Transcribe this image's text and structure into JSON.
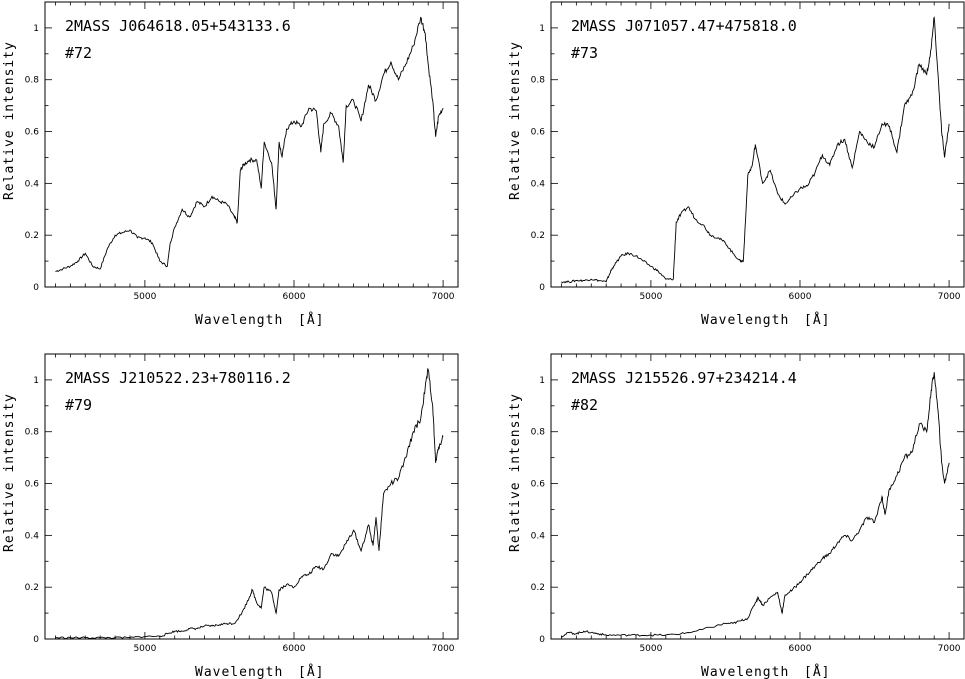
{
  "figure": {
    "panels": [
      {
        "id": "72",
        "title": "2MASS  J064618.05+543133.6",
        "label": "#72"
      },
      {
        "id": "73",
        "title": "2MASS  J071057.47+475818.0",
        "label": "#73"
      },
      {
        "id": "79",
        "title": "2MASS  J210522.23+780116.2",
        "label": "#79"
      },
      {
        "id": "82",
        "title": "2MASS  J215526.97+234214.4",
        "label": "#82"
      }
    ]
  },
  "chart_data": [
    {
      "type": "line",
      "title": "2MASS  J064618.05+543133.6",
      "annotation": "#72",
      "xlabel": "Wavelength",
      "xunit": "[Å]",
      "ylabel": "Relative intensity",
      "xlim": [
        4330,
        7100
      ],
      "ylim": [
        0,
        1.1
      ],
      "xticks": [
        5000,
        6000,
        7000
      ],
      "yticks": [
        0,
        0.2,
        0.4,
        0.6,
        0.8,
        1
      ],
      "ytick_labels": [
        "0",
        "0.2",
        "0.4",
        "0.6",
        "0.8",
        "1"
      ],
      "grid": false,
      "series": [
        {
          "x": [
            4400,
            4450,
            4500,
            4550,
            4600,
            4650,
            4700,
            4750,
            4800,
            4850,
            4900,
            4950,
            5000,
            5050,
            5100,
            5150,
            5170,
            5200,
            5250,
            5300,
            5350,
            5400,
            5450,
            5500,
            5550,
            5600,
            5620,
            5640,
            5660,
            5700,
            5750,
            5780,
            5800,
            5850,
            5880,
            5900,
            5920,
            5950,
            6000,
            6050,
            6100,
            6150,
            6180,
            6200,
            6250,
            6300,
            6330,
            6350,
            6400,
            6450,
            6500,
            6550,
            6600,
            6650,
            6700,
            6750,
            6800,
            6850,
            6880,
            6900,
            6930,
            6950,
            6970,
            7000
          ],
          "y": [
            0.06,
            0.07,
            0.08,
            0.1,
            0.13,
            0.08,
            0.07,
            0.15,
            0.2,
            0.21,
            0.22,
            0.19,
            0.19,
            0.17,
            0.1,
            0.08,
            0.17,
            0.23,
            0.3,
            0.27,
            0.33,
            0.31,
            0.35,
            0.33,
            0.32,
            0.27,
            0.25,
            0.45,
            0.47,
            0.49,
            0.49,
            0.38,
            0.56,
            0.48,
            0.3,
            0.56,
            0.5,
            0.61,
            0.64,
            0.62,
            0.69,
            0.68,
            0.52,
            0.63,
            0.67,
            0.62,
            0.48,
            0.7,
            0.72,
            0.64,
            0.78,
            0.72,
            0.82,
            0.87,
            0.8,
            0.86,
            0.93,
            1.04,
            0.98,
            0.86,
            0.72,
            0.58,
            0.66,
            0.69
          ]
        }
      ]
    },
    {
      "type": "line",
      "title": "2MASS  J071057.47+475818.0",
      "annotation": "#73",
      "xlabel": "Wavelength",
      "xunit": "[Å]",
      "ylabel": "Relative intensity",
      "xlim": [
        4330,
        7100
      ],
      "ylim": [
        0,
        1.1
      ],
      "xticks": [
        5000,
        6000,
        7000
      ],
      "yticks": [
        0,
        0.2,
        0.4,
        0.6,
        0.8,
        1
      ],
      "ytick_labels": [
        "0",
        "0.2",
        "0.4",
        "0.6",
        "0.8",
        "1"
      ],
      "grid": false,
      "series": [
        {
          "x": [
            4400,
            4450,
            4500,
            4550,
            4600,
            4650,
            4700,
            4730,
            4750,
            4800,
            4850,
            4900,
            4950,
            5000,
            5050,
            5100,
            5150,
            5170,
            5200,
            5250,
            5300,
            5350,
            5400,
            5450,
            5500,
            5550,
            5600,
            5620,
            5650,
            5680,
            5700,
            5750,
            5800,
            5850,
            5900,
            5950,
            6000,
            6050,
            6100,
            6150,
            6200,
            6250,
            6300,
            6350,
            6400,
            6450,
            6500,
            6550,
            6600,
            6650,
            6700,
            6750,
            6800,
            6850,
            6880,
            6900,
            6930,
            6950,
            6970,
            7000
          ],
          "y": [
            0.02,
            0.02,
            0.025,
            0.025,
            0.03,
            0.025,
            0.02,
            0.06,
            0.08,
            0.12,
            0.13,
            0.12,
            0.1,
            0.08,
            0.06,
            0.03,
            0.03,
            0.25,
            0.28,
            0.31,
            0.26,
            0.24,
            0.2,
            0.19,
            0.17,
            0.13,
            0.1,
            0.1,
            0.43,
            0.47,
            0.55,
            0.4,
            0.45,
            0.36,
            0.32,
            0.35,
            0.38,
            0.39,
            0.44,
            0.51,
            0.47,
            0.55,
            0.57,
            0.46,
            0.6,
            0.56,
            0.54,
            0.63,
            0.62,
            0.52,
            0.7,
            0.74,
            0.86,
            0.82,
            0.92,
            1.04,
            0.78,
            0.6,
            0.5,
            0.63
          ]
        }
      ]
    },
    {
      "type": "line",
      "title": "2MASS  J210522.23+780116.2",
      "annotation": "#79",
      "xlabel": "Wavelength",
      "xunit": "[Å]",
      "ylabel": "Relative intensity",
      "xlim": [
        4330,
        7100
      ],
      "ylim": [
        0,
        1.1
      ],
      "xticks": [
        5000,
        6000,
        7000
      ],
      "yticks": [
        0,
        0.2,
        0.4,
        0.6,
        0.8,
        1
      ],
      "ytick_labels": [
        "0",
        "0.2",
        "0.4",
        "0.6",
        "0.8",
        "1"
      ],
      "grid": false,
      "series": [
        {
          "x": [
            4400,
            4500,
            4600,
            4700,
            4800,
            4900,
            5000,
            5100,
            5150,
            5200,
            5250,
            5300,
            5350,
            5400,
            5450,
            5500,
            5550,
            5600,
            5650,
            5700,
            5720,
            5750,
            5780,
            5800,
            5850,
            5880,
            5900,
            5950,
            6000,
            6050,
            6100,
            6150,
            6200,
            6250,
            6300,
            6350,
            6400,
            6450,
            6500,
            6530,
            6550,
            6570,
            6600,
            6650,
            6700,
            6750,
            6800,
            6850,
            6880,
            6900,
            6930,
            6950,
            6970,
            7000
          ],
          "y": [
            0.005,
            0.005,
            0.005,
            0.005,
            0.005,
            0.005,
            0.01,
            0.01,
            0.02,
            0.03,
            0.03,
            0.04,
            0.04,
            0.05,
            0.05,
            0.055,
            0.06,
            0.06,
            0.1,
            0.16,
            0.19,
            0.14,
            0.12,
            0.2,
            0.18,
            0.1,
            0.19,
            0.21,
            0.2,
            0.24,
            0.25,
            0.28,
            0.27,
            0.33,
            0.32,
            0.37,
            0.42,
            0.34,
            0.44,
            0.36,
            0.47,
            0.34,
            0.56,
            0.6,
            0.62,
            0.7,
            0.8,
            0.85,
            0.97,
            1.04,
            0.9,
            0.68,
            0.74,
            0.78
          ]
        }
      ]
    },
    {
      "type": "line",
      "title": "2MASS  J215526.97+234214.4",
      "annotation": "#82",
      "xlabel": "Wavelength",
      "xunit": "[Å]",
      "ylabel": "Relative intensity",
      "xlim": [
        4330,
        7100
      ],
      "ylim": [
        0,
        1.1
      ],
      "xticks": [
        5000,
        6000,
        7000
      ],
      "yticks": [
        0,
        0.2,
        0.4,
        0.6,
        0.8,
        1
      ],
      "ytick_labels": [
        "0",
        "0.2",
        "0.4",
        "0.6",
        "0.8",
        "1"
      ],
      "grid": false,
      "series": [
        {
          "x": [
            4400,
            4450,
            4500,
            4550,
            4600,
            4650,
            4700,
            4800,
            4900,
            5000,
            5100,
            5200,
            5300,
            5400,
            5500,
            5550,
            5600,
            5650,
            5700,
            5720,
            5750,
            5800,
            5850,
            5880,
            5900,
            5950,
            6000,
            6050,
            6100,
            6150,
            6200,
            6250,
            6300,
            6350,
            6400,
            6450,
            6500,
            6550,
            6570,
            6600,
            6650,
            6700,
            6750,
            6800,
            6850,
            6880,
            6900,
            6930,
            6950,
            6970,
            7000
          ],
          "y": [
            0.01,
            0.025,
            0.02,
            0.03,
            0.025,
            0.02,
            0.015,
            0.015,
            0.015,
            0.015,
            0.015,
            0.02,
            0.03,
            0.045,
            0.06,
            0.06,
            0.07,
            0.08,
            0.14,
            0.16,
            0.13,
            0.16,
            0.18,
            0.1,
            0.17,
            0.19,
            0.22,
            0.25,
            0.28,
            0.31,
            0.33,
            0.37,
            0.4,
            0.38,
            0.42,
            0.47,
            0.45,
            0.55,
            0.48,
            0.58,
            0.63,
            0.7,
            0.72,
            0.83,
            0.8,
            0.96,
            1.03,
            0.85,
            0.68,
            0.6,
            0.68
          ]
        }
      ]
    }
  ]
}
